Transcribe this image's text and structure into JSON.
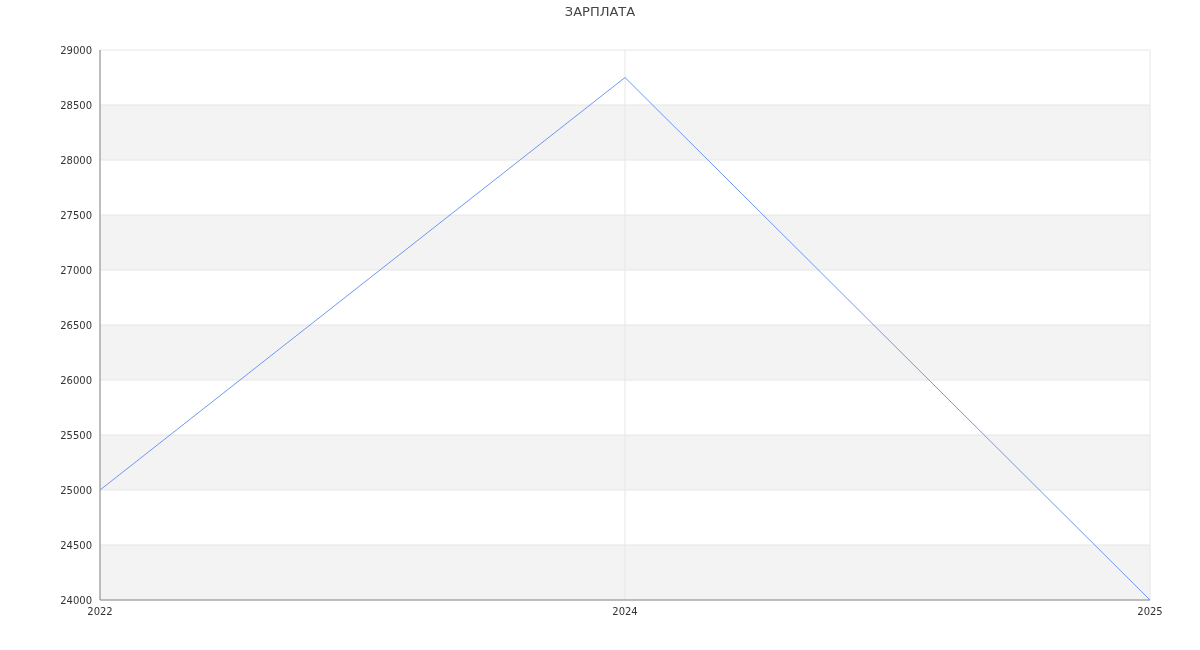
{
  "chart_data": {
    "type": "line",
    "title": "ЗАРПЛАТА",
    "categories": [
      "2022",
      "2024",
      "2025"
    ],
    "series": [
      {
        "color": "#6f98f0",
        "values": [
          25000,
          28750,
          24000
        ]
      }
    ],
    "ylim": [
      24000,
      29000
    ],
    "yticks": [
      24000,
      24500,
      25000,
      25500,
      26000,
      26500,
      27000,
      27500,
      28000,
      28500,
      29000
    ],
    "grid": true,
    "marker": "none",
    "line_style": "solid"
  }
}
